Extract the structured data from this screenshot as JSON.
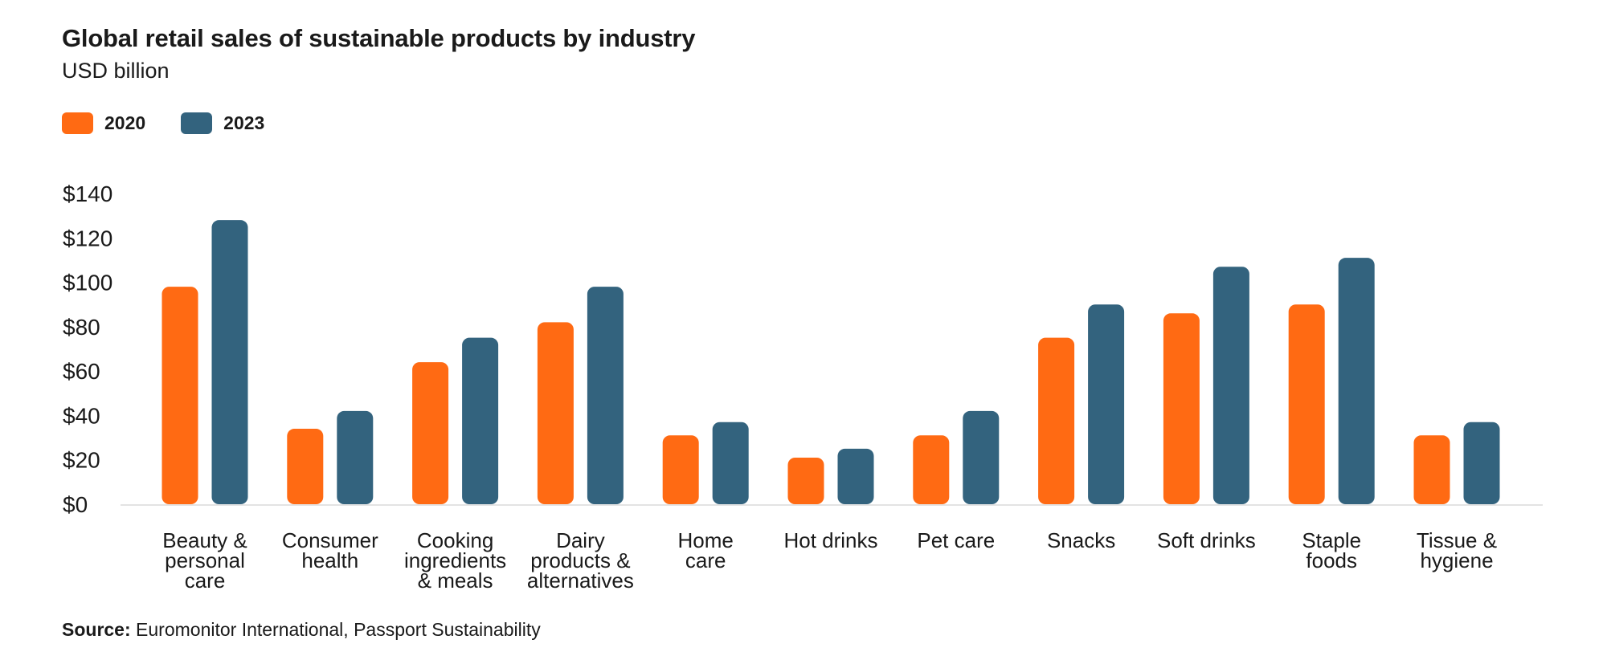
{
  "chart_data": {
    "type": "bar",
    "title": "Global retail sales of sustainable products by industry",
    "subtitle": "USD billion",
    "categories": [
      [
        "Beauty &",
        "personal",
        "care"
      ],
      [
        "Consumer",
        "health"
      ],
      [
        "Cooking",
        "ingredients",
        "& meals"
      ],
      [
        "Dairy",
        "products &",
        "alternatives"
      ],
      [
        "Home",
        "care"
      ],
      [
        "Hot drinks"
      ],
      [
        "Pet care"
      ],
      [
        "Snacks"
      ],
      [
        "Soft drinks"
      ],
      [
        "Staple",
        "foods"
      ],
      [
        "Tissue &",
        "hygiene"
      ]
    ],
    "series": [
      {
        "name": "2020",
        "color": "#ff6a13",
        "values": [
          98,
          34,
          64,
          82,
          31,
          21,
          31,
          75,
          86,
          90,
          31
        ]
      },
      {
        "name": "2023",
        "color": "#33637e",
        "values": [
          128,
          42,
          75,
          98,
          37,
          25,
          42,
          90,
          107,
          111,
          37
        ]
      }
    ],
    "ylim": [
      0,
      140
    ],
    "yticks": [
      "$0",
      "$20",
      "$40",
      "$60",
      "$80",
      "$100",
      "$120",
      "$140"
    ],
    "legend_position": "top-left",
    "grid": false
  },
  "source": {
    "label": "Source:",
    "text": " Euromonitor International, Passport Sustainability"
  }
}
